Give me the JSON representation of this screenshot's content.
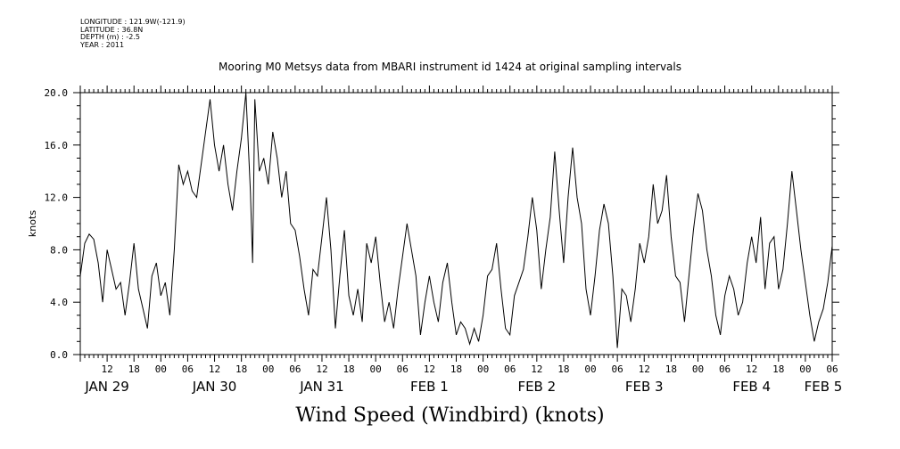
{
  "meta_lines": [
    "LONGITUDE : 121.9W(-121.9)",
    "LATITUDE : 36.8N",
    "DEPTH (m) : -2.5",
    "YEAR : 2011"
  ],
  "chart_data": {
    "type": "line",
    "title": "Mooring M0 Metsys data from MBARI instrument id 1424 at original sampling intervals",
    "xlabel": "Wind Speed (Windbird) (knots)",
    "ylabel": "knots",
    "ylim": [
      0,
      20
    ],
    "yticks": [
      "0.0",
      "4.0",
      "8.0",
      "12.0",
      "16.0",
      "20.0"
    ],
    "x_unit": "hours since JAN 29 00:00 (2011)",
    "xlim": [
      6,
      174
    ],
    "hour_tick_labels": [
      {
        "t": 12,
        "label": "12"
      },
      {
        "t": 18,
        "label": "18"
      },
      {
        "t": 24,
        "label": "00"
      },
      {
        "t": 30,
        "label": "06"
      },
      {
        "t": 36,
        "label": "12"
      },
      {
        "t": 42,
        "label": "18"
      },
      {
        "t": 48,
        "label": "00"
      },
      {
        "t": 54,
        "label": "06"
      },
      {
        "t": 60,
        "label": "12"
      },
      {
        "t": 66,
        "label": "18"
      },
      {
        "t": 72,
        "label": "00"
      },
      {
        "t": 78,
        "label": "06"
      },
      {
        "t": 84,
        "label": "12"
      },
      {
        "t": 90,
        "label": "18"
      },
      {
        "t": 96,
        "label": "00"
      },
      {
        "t": 102,
        "label": "06"
      },
      {
        "t": 108,
        "label": "12"
      },
      {
        "t": 114,
        "label": "18"
      },
      {
        "t": 120,
        "label": "00"
      },
      {
        "t": 126,
        "label": "06"
      },
      {
        "t": 132,
        "label": "12"
      },
      {
        "t": 138,
        "label": "18"
      },
      {
        "t": 144,
        "label": "00"
      },
      {
        "t": 150,
        "label": "06"
      },
      {
        "t": 156,
        "label": "12"
      },
      {
        "t": 162,
        "label": "18"
      },
      {
        "t": 168,
        "label": "00"
      },
      {
        "t": 174,
        "label": "06"
      }
    ],
    "day_labels": [
      {
        "t": 12,
        "label": "JAN 29"
      },
      {
        "t": 36,
        "label": "JAN 30"
      },
      {
        "t": 60,
        "label": "JAN 31"
      },
      {
        "t": 84,
        "label": "FEB  1"
      },
      {
        "t": 108,
        "label": "FEB  2"
      },
      {
        "t": 132,
        "label": "FEB  3"
      },
      {
        "t": 156,
        "label": "FEB  4"
      },
      {
        "t": 172,
        "label": "FEB  5"
      }
    ],
    "series": [
      {
        "color": "#000000",
        "anchors": [
          [
            6,
            6.0
          ],
          [
            7,
            8.5
          ],
          [
            8,
            9.2
          ],
          [
            9,
            8.8
          ],
          [
            10,
            7.0
          ],
          [
            11,
            4.0
          ],
          [
            12,
            8.0
          ],
          [
            13,
            6.5
          ],
          [
            14,
            5.0
          ],
          [
            15,
            5.5
          ],
          [
            16,
            3.0
          ],
          [
            17,
            5.5
          ],
          [
            18,
            8.5
          ],
          [
            19,
            5.0
          ],
          [
            20,
            3.5
          ],
          [
            21,
            2.0
          ],
          [
            22,
            6.0
          ],
          [
            23,
            7.0
          ],
          [
            24,
            4.5
          ],
          [
            25,
            5.5
          ],
          [
            26,
            3.0
          ],
          [
            27,
            8.0
          ],
          [
            28,
            14.5
          ],
          [
            29,
            13.0
          ],
          [
            30,
            14.0
          ],
          [
            31,
            12.5
          ],
          [
            32,
            12.0
          ],
          [
            33,
            14.5
          ],
          [
            34,
            17.0
          ],
          [
            35,
            19.5
          ],
          [
            36,
            16.0
          ],
          [
            37,
            14.0
          ],
          [
            38,
            16.0
          ],
          [
            39,
            13.0
          ],
          [
            40,
            11.0
          ],
          [
            41,
            14.0
          ],
          [
            42,
            16.5
          ],
          [
            43,
            20.0
          ],
          [
            44,
            12.5
          ],
          [
            44.5,
            7.0
          ],
          [
            45,
            19.5
          ],
          [
            46,
            14.0
          ],
          [
            47,
            15.0
          ],
          [
            48,
            13.0
          ],
          [
            49,
            17.0
          ],
          [
            50,
            15.0
          ],
          [
            51,
            12.0
          ],
          [
            52,
            14.0
          ],
          [
            53,
            10.0
          ],
          [
            54,
            9.5
          ],
          [
            55,
            7.5
          ],
          [
            56,
            5.0
          ],
          [
            57,
            3.0
          ],
          [
            58,
            6.5
          ],
          [
            59,
            6.0
          ],
          [
            60,
            9.0
          ],
          [
            61,
            12.0
          ],
          [
            62,
            8.0
          ],
          [
            63,
            2.0
          ],
          [
            64,
            6.0
          ],
          [
            65,
            9.5
          ],
          [
            66,
            4.5
          ],
          [
            67,
            3.0
          ],
          [
            68,
            5.0
          ],
          [
            69,
            2.5
          ],
          [
            70,
            8.5
          ],
          [
            71,
            7.0
          ],
          [
            72,
            9.0
          ],
          [
            73,
            5.5
          ],
          [
            74,
            2.5
          ],
          [
            75,
            4.0
          ],
          [
            76,
            2.0
          ],
          [
            77,
            5.0
          ],
          [
            78,
            7.5
          ],
          [
            79,
            10.0
          ],
          [
            80,
            8.0
          ],
          [
            81,
            6.0
          ],
          [
            82,
            1.5
          ],
          [
            83,
            4.0
          ],
          [
            84,
            6.0
          ],
          [
            85,
            4.0
          ],
          [
            86,
            2.5
          ],
          [
            87,
            5.5
          ],
          [
            88,
            7.0
          ],
          [
            89,
            4.0
          ],
          [
            90,
            1.5
          ],
          [
            91,
            2.5
          ],
          [
            92,
            2.0
          ],
          [
            93,
            0.8
          ],
          [
            94,
            2.0
          ],
          [
            95,
            1.0
          ],
          [
            96,
            3.0
          ],
          [
            97,
            6.0
          ],
          [
            98,
            6.5
          ],
          [
            99,
            8.5
          ],
          [
            100,
            5.0
          ],
          [
            101,
            2.0
          ],
          [
            102,
            1.5
          ],
          [
            103,
            4.5
          ],
          [
            104,
            5.5
          ],
          [
            105,
            6.5
          ],
          [
            106,
            9.0
          ],
          [
            107,
            12.0
          ],
          [
            108,
            9.5
          ],
          [
            109,
            5.0
          ],
          [
            110,
            8.0
          ],
          [
            111,
            10.5
          ],
          [
            112,
            15.5
          ],
          [
            113,
            11.0
          ],
          [
            114,
            7.0
          ],
          [
            115,
            12.0
          ],
          [
            116,
            15.8
          ],
          [
            117,
            12.0
          ],
          [
            118,
            10.0
          ],
          [
            119,
            5.0
          ],
          [
            120,
            3.0
          ],
          [
            121,
            6.0
          ],
          [
            122,
            9.5
          ],
          [
            123,
            11.5
          ],
          [
            124,
            10.0
          ],
          [
            125,
            6.0
          ],
          [
            126,
            0.5
          ],
          [
            127,
            5.0
          ],
          [
            128,
            4.5
          ],
          [
            129,
            2.5
          ],
          [
            130,
            5.0
          ],
          [
            131,
            8.5
          ],
          [
            132,
            7.0
          ],
          [
            133,
            9.0
          ],
          [
            134,
            13.0
          ],
          [
            135,
            10.0
          ],
          [
            136,
            11.0
          ],
          [
            137,
            13.7
          ],
          [
            138,
            9.0
          ],
          [
            139,
            6.0
          ],
          [
            140,
            5.5
          ],
          [
            141,
            2.5
          ],
          [
            142,
            6.0
          ],
          [
            143,
            9.5
          ],
          [
            144,
            12.3
          ],
          [
            145,
            11.0
          ],
          [
            146,
            8.0
          ],
          [
            147,
            6.0
          ],
          [
            148,
            3.0
          ],
          [
            149,
            1.5
          ],
          [
            150,
            4.5
          ],
          [
            151,
            6.0
          ],
          [
            152,
            5.0
          ],
          [
            153,
            3.0
          ],
          [
            154,
            4.0
          ],
          [
            155,
            7.0
          ],
          [
            156,
            9.0
          ],
          [
            157,
            7.0
          ],
          [
            158,
            10.5
          ],
          [
            159,
            5.0
          ],
          [
            160,
            8.5
          ],
          [
            161,
            9.0
          ],
          [
            162,
            5.0
          ],
          [
            163,
            6.5
          ],
          [
            164,
            10.0
          ],
          [
            165,
            14.0
          ],
          [
            166,
            11.0
          ],
          [
            167,
            8.0
          ],
          [
            168,
            5.5
          ],
          [
            169,
            3.0
          ],
          [
            170,
            1.0
          ],
          [
            171,
            2.5
          ],
          [
            172,
            3.5
          ],
          [
            173,
            5.5
          ],
          [
            174,
            8.3
          ]
        ]
      }
    ]
  }
}
